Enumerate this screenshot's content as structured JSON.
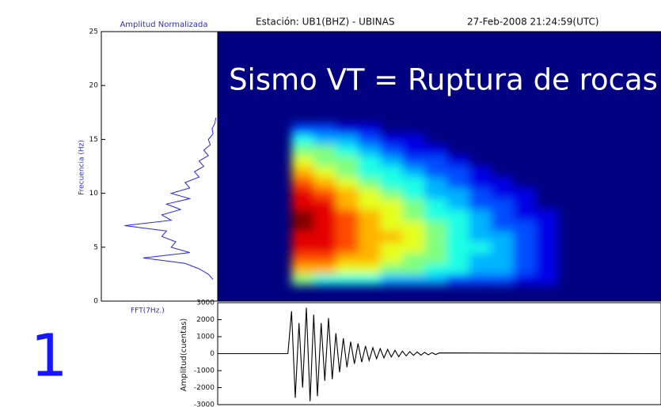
{
  "label": "1",
  "chart_data": [
    {
      "type": "line",
      "orientation": "horizontal",
      "title": "Amplitud Normalizada",
      "ylabel": "Frecuencia (Hz)",
      "xlabel": "FFT(7Hz.)",
      "color": "#2323ff",
      "x": [
        2,
        2.5,
        3,
        3.5,
        4,
        4.5,
        5,
        5.5,
        6,
        6.5,
        7,
        7.5,
        8,
        8.5,
        9,
        9.5,
        10,
        10.5,
        11,
        11.5,
        12,
        12.5,
        13,
        13.5,
        14,
        14.5,
        15,
        15.5,
        16,
        16.5,
        17
      ],
      "values": [
        0.05,
        0.1,
        0.2,
        0.35,
        0.8,
        0.3,
        0.5,
        0.45,
        0.6,
        0.55,
        1.0,
        0.5,
        0.6,
        0.4,
        0.55,
        0.3,
        0.5,
        0.3,
        0.35,
        0.2,
        0.25,
        0.15,
        0.2,
        0.1,
        0.15,
        0.08,
        0.1,
        0.05,
        0.06,
        0.03,
        0.02
      ],
      "xlim": [
        0,
        1.25
      ],
      "ylim": [
        0,
        25
      ],
      "yticks": [
        0,
        5,
        10,
        15,
        20,
        25
      ]
    },
    {
      "type": "heatmap",
      "title": "Sismo VT = Ruptura de rocas",
      "subtitle": "Estación: UB1(BHZ) - UBINAS",
      "annotation": "27-Feb-2008 21:24:59(UTC)",
      "x": [
        11.5,
        14.5,
        17.5,
        20.5,
        23.5,
        26.5,
        29.5,
        32.5,
        35.5,
        38.5,
        41.5,
        44.5
      ],
      "y": [
        2,
        3,
        4,
        5,
        6,
        7,
        8,
        9,
        10,
        11,
        12,
        13,
        14,
        15,
        16
      ],
      "z": [
        [
          5,
          4,
          4,
          4,
          3,
          3,
          3,
          2,
          2,
          2,
          1,
          1
        ],
        [
          7,
          7,
          6,
          6,
          5,
          5,
          4,
          4,
          3,
          3,
          2,
          1
        ],
        [
          8,
          8,
          7,
          7,
          6,
          5,
          5,
          4,
          3,
          3,
          2,
          1
        ],
        [
          9,
          9,
          8,
          7,
          6,
          6,
          5,
          4,
          4,
          3,
          2,
          1
        ],
        [
          9,
          9,
          8,
          7,
          7,
          6,
          5,
          4,
          3,
          3,
          2,
          1
        ],
        [
          10,
          9,
          8,
          7,
          6,
          6,
          5,
          4,
          3,
          2,
          2,
          1
        ],
        [
          10,
          9,
          8,
          7,
          6,
          5,
          4,
          4,
          3,
          2,
          1,
          1
        ],
        [
          9,
          9,
          7,
          6,
          6,
          5,
          4,
          3,
          2,
          2,
          1,
          0
        ],
        [
          9,
          8,
          7,
          6,
          5,
          4,
          3,
          3,
          2,
          1,
          1,
          0
        ],
        [
          8,
          7,
          6,
          5,
          4,
          4,
          3,
          2,
          1,
          1,
          0,
          0
        ],
        [
          7,
          6,
          5,
          4,
          4,
          3,
          2,
          2,
          1,
          0,
          0,
          0
        ],
        [
          6,
          5,
          5,
          4,
          3,
          2,
          2,
          1,
          0,
          0,
          0,
          0
        ],
        [
          5,
          5,
          4,
          3,
          2,
          1,
          1,
          0,
          0,
          0,
          0,
          0
        ],
        [
          4,
          3,
          3,
          2,
          1,
          1,
          0,
          0,
          0,
          0,
          0,
          0
        ],
        [
          2,
          2,
          1,
          1,
          0,
          0,
          0,
          0,
          0,
          0,
          0,
          0
        ]
      ],
      "zlim": [
        0,
        10
      ],
      "xlim": [
        0,
        60
      ],
      "ylim": [
        0,
        25
      ],
      "colormap": "jet"
    },
    {
      "type": "line",
      "ylabel": "Amplitud(cuentas)",
      "color": "#000000",
      "x": [
        0,
        9.5,
        10,
        10.5,
        11,
        11.5,
        12,
        12.5,
        13,
        13.5,
        14,
        14.5,
        15,
        15.5,
        16,
        16.5,
        17,
        17.5,
        18,
        18.5,
        19,
        19.5,
        20,
        20.5,
        21,
        21.5,
        22,
        22.5,
        23,
        23.5,
        24,
        24.5,
        25,
        25.5,
        26,
        26.5,
        27,
        27.5,
        28,
        28.5,
        29,
        29.5,
        30,
        60
      ],
      "values": [
        0,
        0,
        2500,
        -2600,
        1800,
        -2000,
        2700,
        -2800,
        2300,
        -2500,
        1800,
        -1600,
        2100,
        -1500,
        1200,
        -1100,
        900,
        -800,
        700,
        -600,
        600,
        -500,
        450,
        -400,
        350,
        -300,
        300,
        -250,
        250,
        -200,
        200,
        -180,
        150,
        -130,
        120,
        -100,
        100,
        -90,
        80,
        -70,
        60,
        -50,
        40,
        0
      ],
      "xlim": [
        0,
        60
      ],
      "ylim": [
        -3000,
        3000
      ],
      "yticks": [
        3000,
        2000,
        1000,
        0,
        -1000,
        -2000,
        -3000
      ]
    }
  ]
}
